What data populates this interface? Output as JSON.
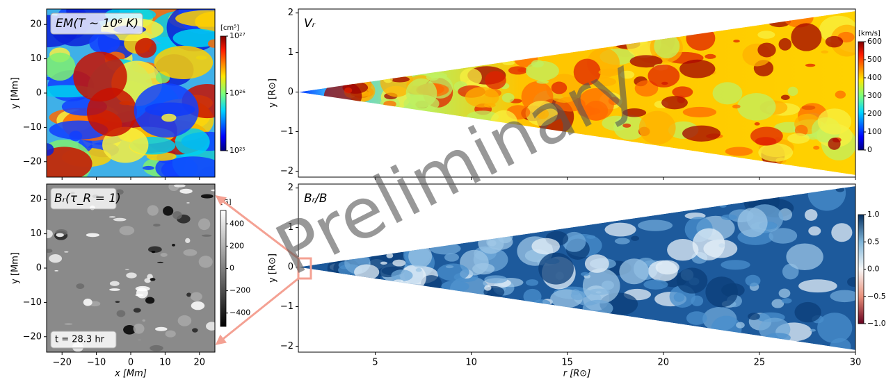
{
  "chart_data": [
    {
      "type": "heatmap",
      "title": "EM(T ∼ 10⁶ K)",
      "ylabel": "y [Mm]",
      "xlim": [
        -24.5,
        24.5
      ],
      "ylim": [
        -24.5,
        24.5
      ],
      "xticks": [
        {
          "value": -20,
          "label": "−20"
        },
        {
          "value": -10,
          "label": "−10"
        },
        0,
        10,
        20
      ],
      "yticks": [
        {
          "value": -20,
          "label": "−20"
        },
        {
          "value": -10,
          "label": "−10"
        },
        0,
        10,
        20
      ],
      "colorbar": {
        "label": "[cm⁵]",
        "log": true,
        "lim": [
          1e+25,
          1e+27
        ],
        "ticks": [
          {
            "value": 1e+25,
            "label": "10²⁵"
          },
          {
            "value": 1e+26,
            "label": "10²⁶"
          },
          {
            "value": 1e+27,
            "label": "10²⁷"
          }
        ]
      }
    },
    {
      "type": "heatmap",
      "title": "Bᵣ(τ_R = 1)",
      "xlabel": "x [Mm]",
      "ylabel": "y [Mm]",
      "annotation": "t = 28.3 hr",
      "xlim": [
        -24.5,
        24.5
      ],
      "ylim": [
        -24.5,
        24.5
      ],
      "xticks": [
        {
          "value": -20,
          "label": "−20"
        },
        {
          "value": -10,
          "label": "−10"
        },
        0,
        10,
        20
      ],
      "yticks": [
        {
          "value": -20,
          "label": "−20"
        },
        {
          "value": -10,
          "label": "−10"
        },
        0,
        10,
        20
      ],
      "colorbar": {
        "label": "[G]",
        "log": false,
        "lim": [
          -520,
          520
        ],
        "ticks": [
          {
            "value": -400,
            "label": "−400"
          },
          {
            "value": -200,
            "label": "−200"
          },
          0,
          200,
          400
        ]
      }
    },
    {
      "type": "heatmap",
      "title": "Vᵣ",
      "ylabel": "y [R⊙]",
      "xlim": [
        1,
        30
      ],
      "ylim": [
        -2.15,
        2.1
      ],
      "xticks": [
        5,
        10,
        15,
        20,
        25,
        30
      ],
      "yticks": [
        {
          "value": -2,
          "label": "−2"
        },
        {
          "value": -1,
          "label": "−1"
        },
        0,
        1,
        2
      ],
      "colorbar": {
        "label": "[km/s]",
        "log": false,
        "lim": [
          0,
          600
        ],
        "ticks": [
          0,
          100,
          200,
          300,
          400,
          500,
          600
        ]
      }
    },
    {
      "type": "heatmap",
      "title": "Bᵣ/B",
      "xlabel": "r [R⊙]",
      "ylabel": "y [R⊙]",
      "xlim": [
        1,
        30
      ],
      "ylim": [
        -2.15,
        2.1
      ],
      "xticks": [
        5,
        10,
        15,
        20,
        25,
        30
      ],
      "yticks": [
        {
          "value": -2,
          "label": "−2"
        },
        {
          "value": -1,
          "label": "−1"
        },
        0,
        1,
        2
      ],
      "colorbar": {
        "label": "",
        "log": false,
        "lim": [
          -1,
          1
        ],
        "ticks": [
          {
            "value": -1,
            "label": "−1.0"
          },
          {
            "value": -0.5,
            "label": "−0.5"
          },
          {
            "value": 0,
            "label": "0.0"
          },
          {
            "value": 0.5,
            "label": "0.5"
          },
          {
            "value": 1,
            "label": "1.0"
          }
        ]
      }
    }
  ],
  "watermark": "Preliminary"
}
